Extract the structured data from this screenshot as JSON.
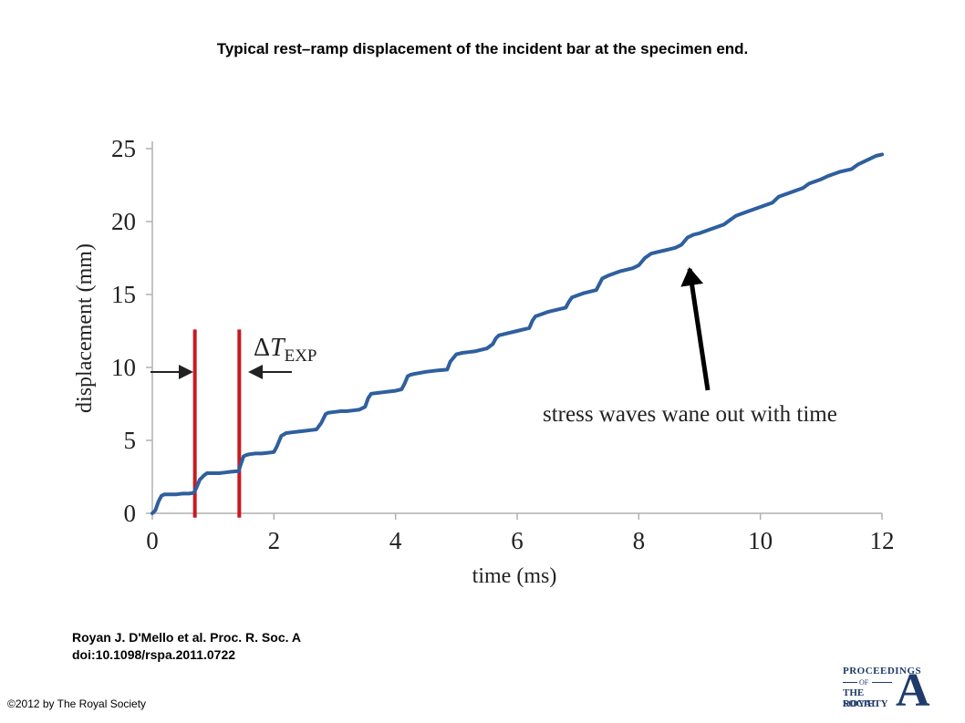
{
  "slide": {
    "title": "Typical rest–ramp displacement of the incident bar at the specimen end.",
    "citation_line1": "Royan J. D'Mello et al. Proc. R. Soc. A",
    "citation_line2": "doi:10.1098/rspa.2011.0722",
    "copyright": "©2012 by The Royal Society"
  },
  "logo": {
    "line1": "PROCEEDINGS",
    "line2": "OF",
    "line3": "THE ROYAL",
    "line4": "SOCIETY",
    "letter": "A"
  },
  "chart_data": {
    "type": "line",
    "title": "",
    "xlabel": "time (ms)",
    "ylabel": "displacement (mm)",
    "xlim": [
      0,
      12
    ],
    "ylim": [
      0,
      25
    ],
    "xticks": [
      0,
      2,
      4,
      6,
      8,
      10,
      12
    ],
    "yticks": [
      0,
      5,
      10,
      15,
      20,
      25
    ],
    "grid": false,
    "colors": {
      "line": "#2f5f9e",
      "markers": "#c8191f",
      "axis": "#b0b0b0",
      "text": "#222222"
    },
    "series": [
      {
        "x": [
          0.0,
          0.05,
          0.1,
          0.15,
          0.2,
          0.3,
          0.4,
          0.5,
          0.6,
          0.68,
          0.72,
          0.78,
          0.85,
          0.9,
          1.0,
          1.1,
          1.2,
          1.3,
          1.42,
          1.45,
          1.5,
          1.55,
          1.6,
          1.7,
          1.8,
          1.9,
          2.0,
          2.05,
          2.12,
          2.2,
          2.3,
          2.4,
          2.5,
          2.6,
          2.7,
          2.78,
          2.85,
          2.9,
          3.0,
          3.1,
          3.2,
          3.3,
          3.4,
          3.5,
          3.55,
          3.6,
          3.7,
          3.8,
          3.9,
          4.0,
          4.1,
          4.15,
          4.2,
          4.25,
          4.3,
          4.5,
          4.7,
          4.85,
          4.9,
          5.0,
          5.1,
          5.2,
          5.3,
          5.5,
          5.6,
          5.65,
          5.7,
          5.8,
          6.0,
          6.2,
          6.25,
          6.3,
          6.4,
          6.5,
          6.6,
          6.8,
          6.85,
          6.9,
          7.0,
          7.1,
          7.2,
          7.3,
          7.35,
          7.4,
          7.5,
          7.6,
          7.7,
          7.8,
          7.9,
          8.0,
          8.1,
          8.2,
          8.3,
          8.4,
          8.5,
          8.6,
          8.7,
          8.8,
          8.9,
          9.0,
          9.2,
          9.4,
          9.5,
          9.6,
          9.8,
          10.0,
          10.2,
          10.3,
          10.5,
          10.7,
          10.8,
          11.0,
          11.1,
          11.3,
          11.5,
          11.6,
          11.8,
          11.9,
          12.0
        ],
        "y": [
          0.0,
          0.2,
          0.8,
          1.2,
          1.3,
          1.3,
          1.3,
          1.35,
          1.35,
          1.4,
          1.7,
          2.3,
          2.6,
          2.75,
          2.75,
          2.75,
          2.8,
          2.85,
          2.9,
          3.3,
          3.9,
          4.0,
          4.05,
          4.1,
          4.1,
          4.15,
          4.2,
          4.6,
          5.3,
          5.5,
          5.55,
          5.6,
          5.65,
          5.7,
          5.75,
          6.2,
          6.8,
          6.9,
          6.95,
          7.0,
          7.0,
          7.05,
          7.1,
          7.3,
          7.9,
          8.2,
          8.25,
          8.3,
          8.35,
          8.4,
          8.5,
          8.9,
          9.4,
          9.5,
          9.55,
          9.7,
          9.8,
          9.85,
          10.4,
          10.9,
          11.0,
          11.05,
          11.1,
          11.3,
          11.6,
          12.0,
          12.2,
          12.3,
          12.5,
          12.7,
          13.2,
          13.5,
          13.65,
          13.8,
          13.9,
          14.1,
          14.5,
          14.8,
          14.95,
          15.1,
          15.2,
          15.3,
          15.7,
          16.1,
          16.3,
          16.45,
          16.6,
          16.7,
          16.8,
          17.0,
          17.5,
          17.8,
          17.9,
          18.0,
          18.1,
          18.2,
          18.4,
          18.9,
          19.1,
          19.2,
          19.5,
          19.8,
          20.1,
          20.4,
          20.7,
          21.0,
          21.3,
          21.7,
          22.0,
          22.3,
          22.6,
          22.9,
          23.1,
          23.4,
          23.6,
          23.9,
          24.3,
          24.5,
          24.6
        ]
      }
    ],
    "markers": [
      {
        "type": "vline",
        "x": 0.7,
        "ymin": -0.3,
        "ymax": 12.6
      },
      {
        "type": "vline",
        "x": 1.43,
        "ymin": -0.3,
        "ymax": 12.6
      }
    ],
    "annotations": {
      "delta_prefix": "Δ",
      "delta_symbol": "T",
      "delta_subscript": "EXP",
      "arrow_text": "stress waves wane out with time"
    }
  }
}
